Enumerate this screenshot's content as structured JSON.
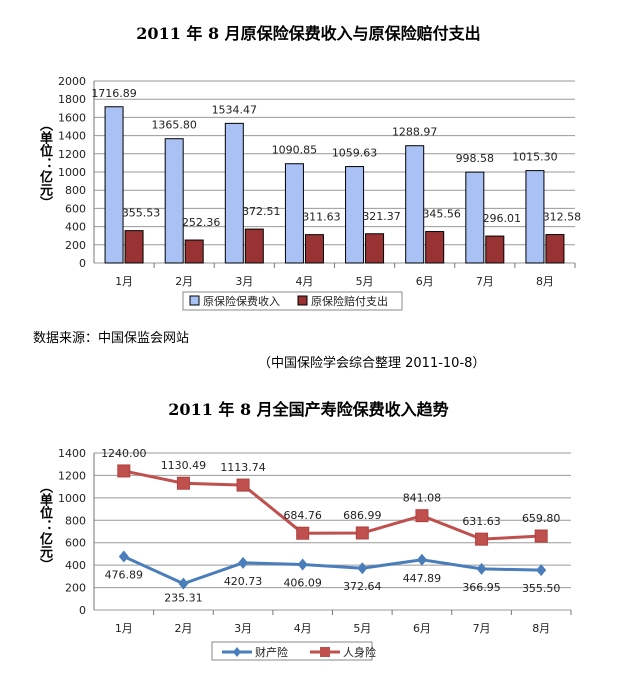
{
  "source_note": "数据来源：中国保监会网站",
  "compiler_note": "（中国保险学会综合整理  2011-10-8）",
  "chart_data": [
    {
      "type": "bar",
      "title": "2011 年 8 月原保险保费收入与原保险赔付支出",
      "ylabel": "（单位：亿元）",
      "ylim": [
        0,
        2000
      ],
      "yticks": [
        0,
        200,
        400,
        600,
        800,
        1000,
        1200,
        1400,
        1600,
        1800,
        2000
      ],
      "categories": [
        "1月",
        "2月",
        "3月",
        "4月",
        "5月",
        "6月",
        "7月",
        "8月"
      ],
      "series": [
        {
          "name": "原保险保费收入",
          "color": "#a9c1f5",
          "values": [
            1716.89,
            1365.8,
            1534.47,
            1090.85,
            1059.63,
            1288.97,
            998.58,
            1015.3
          ]
        },
        {
          "name": "原保险赔付支出",
          "color": "#993333",
          "values": [
            355.53,
            252.36,
            372.51,
            311.63,
            321.37,
            345.56,
            296.01,
            312.58
          ]
        }
      ],
      "legend": "bottom",
      "grid": true
    },
    {
      "type": "line",
      "title": "2011 年 8 月全国产寿险保费收入趋势",
      "ylabel": "（单位：亿元）",
      "ylim": [
        0,
        1400
      ],
      "yticks": [
        0,
        200,
        400,
        600,
        800,
        1000,
        1200,
        1400
      ],
      "categories": [
        "1月",
        "2月",
        "3月",
        "4月",
        "5月",
        "6月",
        "7月",
        "8月"
      ],
      "series": [
        {
          "name": "财产险",
          "color": "#4a7ebb",
          "marker": "diamond",
          "values": [
            476.89,
            235.31,
            420.73,
            406.09,
            372.64,
            447.89,
            366.95,
            355.5
          ]
        },
        {
          "name": "人身险",
          "color": "#c0504d",
          "marker": "square",
          "values": [
            1240.0,
            1130.49,
            1113.74,
            684.76,
            686.99,
            841.08,
            631.63,
            659.8
          ]
        }
      ],
      "legend": "bottom",
      "grid": true
    }
  ]
}
